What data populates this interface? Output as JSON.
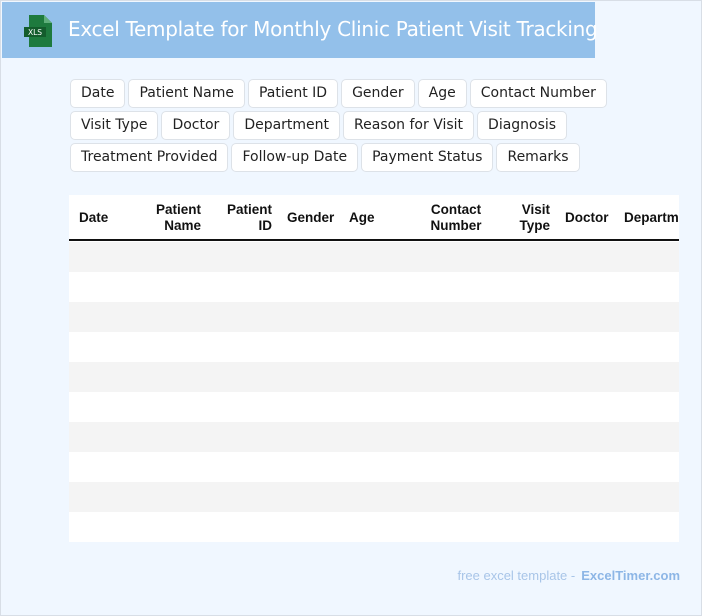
{
  "header": {
    "title": "Excel Template for Monthly Clinic Patient Visit Tracking",
    "logo_text": "XLS",
    "logo_color": "#1e7a3e",
    "background": "#93c0ea"
  },
  "fields": [
    "Date",
    "Patient Name",
    "Patient ID",
    "Gender",
    "Age",
    "Contact Number",
    "Visit Type",
    "Doctor",
    "Department",
    "Reason for Visit",
    "Diagnosis",
    "Treatment Provided",
    "Follow-up Date",
    "Payment Status",
    "Remarks"
  ],
  "table": {
    "columns": [
      {
        "line1": "Date",
        "line2": ""
      },
      {
        "line1": "Patient",
        "line2": "Name"
      },
      {
        "line1": "Patient",
        "line2": "ID"
      },
      {
        "line1": "Gender",
        "line2": ""
      },
      {
        "line1": "Age",
        "line2": ""
      },
      {
        "line1": "Contact",
        "line2": "Number"
      },
      {
        "line1": "Visit",
        "line2": "Type"
      },
      {
        "line1": "Doctor",
        "line2": ""
      },
      {
        "line1": "Departm",
        "line2": ""
      }
    ],
    "row_count": 10,
    "stripe_color": "#f4f4f4"
  },
  "footer": {
    "text": "free excel template -",
    "brand": "ExcelTimer.com"
  }
}
